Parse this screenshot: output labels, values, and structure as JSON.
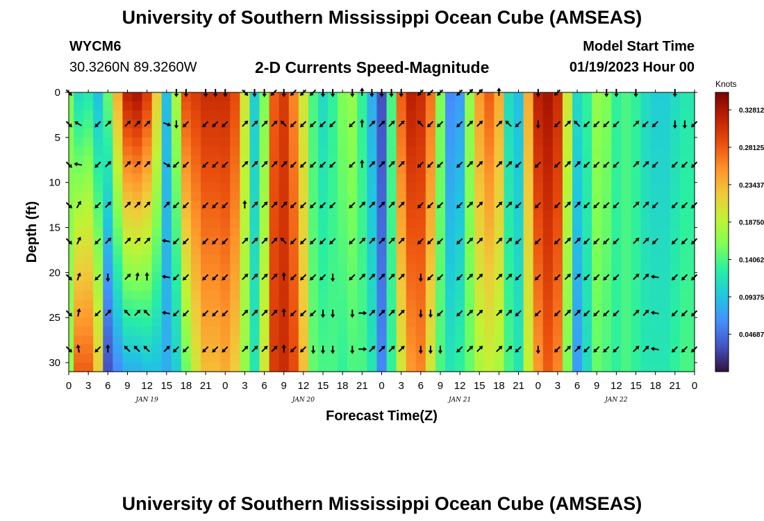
{
  "header": {
    "title": "University of Southern Mississippi Ocean Cube (AMSEAS)",
    "station_id": "WYCM6",
    "station_coords": "30.3260N  89.3260W",
    "subtitle": "2-D Currents Speed-Magnitude",
    "model_label": "Model Start Time",
    "model_time": "01/19/2023 Hour 00"
  },
  "footer": {
    "title": "University of Southern Mississippi Ocean Cube (AMSEAS)"
  },
  "chart_data": {
    "type": "heatmap",
    "title": "2-D Currents Speed-Magnitude",
    "xlabel": "Forecast Time(Z)",
    "ylabel": "Depth (ft)",
    "x_range_hours": [
      0,
      96
    ],
    "ylim": [
      31,
      0
    ],
    "x_tick_labels": [
      "0",
      "3",
      "6",
      "9",
      "12",
      "15",
      "18",
      "21",
      "0",
      "3",
      "6",
      "9",
      "12",
      "15",
      "18",
      "21",
      "0",
      "3",
      "6",
      "9",
      "12",
      "15",
      "18",
      "21",
      "0",
      "3",
      "6",
      "9",
      "12",
      "15",
      "18",
      "21",
      "0"
    ],
    "y_ticks": [
      0,
      5,
      10,
      15,
      20,
      25,
      30
    ],
    "day_labels": [
      {
        "text": "JAN 19",
        "hour": 12
      },
      {
        "text": "JAN 20",
        "hour": 36
      },
      {
        "text": "JAN 21",
        "hour": 60
      },
      {
        "text": "JAN 22",
        "hour": 84
      }
    ],
    "colorbar": {
      "unit": "Knots",
      "min": 0.0,
      "max": 0.35,
      "tick_labels": [
        "0.32812",
        "0.28125",
        "0.23437",
        "0.18750",
        "0.14062",
        "0.09375",
        "0.04687"
      ],
      "tick_values": [
        0.32812,
        0.28125,
        0.23437,
        0.1875,
        0.14062,
        0.09375,
        0.04687
      ],
      "colors": [
        "#30123b",
        "#4454c4",
        "#4490fe",
        "#1fc8de",
        "#29efa2",
        "#7dff56",
        "#c1f334",
        "#f1ca3a",
        "#fe922a",
        "#ea4f0d",
        "#be2102",
        "#7a0403"
      ]
    },
    "speed_profile": [
      {
        "hour": 0,
        "surface": 0.16,
        "deep": 0.17
      },
      {
        "hour": 1.5,
        "surface": 0.11,
        "deep": 0.28
      },
      {
        "hour": 3,
        "surface": 0.12,
        "deep": 0.28
      },
      {
        "hour": 4.5,
        "surface": 0.09,
        "deep": 0.22
      },
      {
        "hour": 6,
        "surface": 0.15,
        "deep": 0.03
      },
      {
        "hour": 7.5,
        "surface": 0.24,
        "deep": 0.06
      },
      {
        "hour": 9,
        "surface": 0.32,
        "deep": 0.08
      },
      {
        "hour": 10.5,
        "surface": 0.33,
        "deep": 0.08
      },
      {
        "hour": 12,
        "surface": 0.3,
        "deep": 0.09
      },
      {
        "hour": 13.5,
        "surface": 0.22,
        "deep": 0.09
      },
      {
        "hour": 15,
        "surface": 0.09,
        "deep": 0.08
      },
      {
        "hour": 16.5,
        "surface": 0.18,
        "deep": 0.1
      },
      {
        "hour": 18,
        "surface": 0.29,
        "deep": 0.15
      },
      {
        "hour": 19.5,
        "surface": 0.3,
        "deep": 0.2
      },
      {
        "hour": 21,
        "surface": 0.31,
        "deep": 0.23
      },
      {
        "hour": 22.5,
        "surface": 0.31,
        "deep": 0.23
      },
      {
        "hour": 24,
        "surface": 0.31,
        "deep": 0.24
      },
      {
        "hour": 25.5,
        "surface": 0.29,
        "deep": 0.22
      },
      {
        "hour": 27,
        "surface": 0.2,
        "deep": 0.17
      },
      {
        "hour": 28.5,
        "surface": 0.1,
        "deep": 0.12
      },
      {
        "hour": 30,
        "surface": 0.16,
        "deep": 0.2
      },
      {
        "hour": 31.5,
        "surface": 0.28,
        "deep": 0.3
      },
      {
        "hour": 33,
        "surface": 0.3,
        "deep": 0.31
      },
      {
        "hour": 34.5,
        "surface": 0.26,
        "deep": 0.29
      },
      {
        "hour": 36,
        "surface": 0.2,
        "deep": 0.23
      },
      {
        "hour": 37.5,
        "surface": 0.14,
        "deep": 0.15
      },
      {
        "hour": 39,
        "surface": 0.11,
        "deep": 0.14
      },
      {
        "hour": 40.5,
        "surface": 0.13,
        "deep": 0.14
      },
      {
        "hour": 42,
        "surface": 0.16,
        "deep": 0.13
      },
      {
        "hour": 43.5,
        "surface": 0.17,
        "deep": 0.14
      },
      {
        "hour": 45,
        "surface": 0.13,
        "deep": 0.14
      },
      {
        "hour": 46.5,
        "surface": 0.08,
        "deep": 0.12
      },
      {
        "hour": 48,
        "surface": 0.03,
        "deep": 0.06
      },
      {
        "hour": 49.5,
        "surface": 0.14,
        "deep": 0.13
      },
      {
        "hour": 51,
        "surface": 0.28,
        "deep": 0.2
      },
      {
        "hour": 52.5,
        "surface": 0.32,
        "deep": 0.25
      },
      {
        "hour": 54,
        "surface": 0.31,
        "deep": 0.26
      },
      {
        "hour": 55.5,
        "surface": 0.27,
        "deep": 0.2
      },
      {
        "hour": 57,
        "surface": 0.16,
        "deep": 0.14
      },
      {
        "hour": 58.5,
        "surface": 0.06,
        "deep": 0.12
      },
      {
        "hour": 60,
        "surface": 0.07,
        "deep": 0.13
      },
      {
        "hour": 61.5,
        "surface": 0.17,
        "deep": 0.15
      },
      {
        "hour": 63,
        "surface": 0.25,
        "deep": 0.18
      },
      {
        "hour": 64.5,
        "surface": 0.28,
        "deep": 0.19
      },
      {
        "hour": 66,
        "surface": 0.24,
        "deep": 0.18
      },
      {
        "hour": 67.5,
        "surface": 0.11,
        "deep": 0.14
      },
      {
        "hour": 69,
        "surface": 0.09,
        "deep": 0.12
      },
      {
        "hour": 70.5,
        "surface": 0.24,
        "deep": 0.19
      },
      {
        "hour": 72,
        "surface": 0.32,
        "deep": 0.25
      },
      {
        "hour": 73.5,
        "surface": 0.33,
        "deep": 0.28
      },
      {
        "hour": 75,
        "surface": 0.31,
        "deep": 0.26
      },
      {
        "hour": 76.5,
        "surface": 0.2,
        "deep": 0.16
      },
      {
        "hour": 78,
        "surface": 0.11,
        "deep": 0.07
      },
      {
        "hour": 79.5,
        "surface": 0.13,
        "deep": 0.11
      },
      {
        "hour": 81,
        "surface": 0.17,
        "deep": 0.15
      },
      {
        "hour": 82.5,
        "surface": 0.16,
        "deep": 0.14
      },
      {
        "hour": 84,
        "surface": 0.13,
        "deep": 0.13
      },
      {
        "hour": 85.5,
        "surface": 0.14,
        "deep": 0.14
      },
      {
        "hour": 87,
        "surface": 0.13,
        "deep": 0.13
      },
      {
        "hour": 88.5,
        "surface": 0.11,
        "deep": 0.12
      },
      {
        "hour": 90,
        "surface": 0.1,
        "deep": 0.12
      },
      {
        "hour": 91.5,
        "surface": 0.1,
        "deep": 0.12
      },
      {
        "hour": 93,
        "surface": 0.11,
        "deep": 0.13
      },
      {
        "hour": 94.5,
        "surface": 0.12,
        "deep": 0.14
      },
      {
        "hour": 96,
        "surface": 0.12,
        "deep": 0.14
      }
    ],
    "arrow_depths_ft": [
      0,
      3.5,
      8,
      12.5,
      16.5,
      20.5,
      24.5,
      28.5
    ],
    "arrow_columns": [
      {
        "hour": 0,
        "dirs_deg": [
          135,
          135,
          135,
          135,
          135,
          135,
          135,
          135
        ]
      },
      {
        "hour": 1.5,
        "dirs_deg": [
          null,
          300,
          280,
          30,
          25,
          20,
          10,
          350
        ]
      },
      {
        "hour": 4.5,
        "dirs_deg": [
          null,
          225,
          225,
          225,
          225,
          225,
          225,
          225
        ]
      },
      {
        "hour": 6,
        "dirs_deg": [
          null,
          45,
          45,
          45,
          45,
          180,
          45,
          0
        ]
      },
      {
        "hour": 9,
        "dirs_deg": [
          null,
          45,
          45,
          45,
          45,
          45,
          315,
          315
        ]
      },
      {
        "hour": 10.5,
        "dirs_deg": [
          null,
          45,
          45,
          45,
          45,
          10,
          45,
          315
        ]
      },
      {
        "hour": 12,
        "dirs_deg": [
          null,
          45,
          45,
          45,
          45,
          0,
          315,
          315
        ]
      },
      {
        "hour": 15,
        "dirs_deg": [
          null,
          110,
          120,
          45,
          280,
          280,
          280,
          45
        ]
      },
      {
        "hour": 16.5,
        "dirs_deg": [
          180,
          180,
          225,
          225,
          225,
          225,
          225,
          225
        ]
      },
      {
        "hour": 18,
        "dirs_deg": [
          180,
          225,
          225,
          225,
          225,
          225,
          225,
          225
        ]
      },
      {
        "hour": 21,
        "dirs_deg": [
          180,
          225,
          225,
          225,
          225,
          225,
          225,
          225
        ]
      },
      {
        "hour": 22.5,
        "dirs_deg": [
          180,
          225,
          225,
          225,
          225,
          225,
          225,
          225
        ]
      },
      {
        "hour": 24,
        "dirs_deg": [
          180,
          225,
          225,
          225,
          225,
          225,
          225,
          225
        ]
      },
      {
        "hour": 27,
        "dirs_deg": [
          135,
          45,
          45,
          0,
          45,
          45,
          45,
          45
        ]
      },
      {
        "hour": 28.5,
        "dirs_deg": [
          180,
          45,
          45,
          45,
          45,
          45,
          45,
          45
        ]
      },
      {
        "hour": 30,
        "dirs_deg": [
          180,
          45,
          45,
          45,
          45,
          45,
          45,
          45
        ]
      },
      {
        "hour": 31.5,
        "dirs_deg": [
          225,
          45,
          45,
          45,
          45,
          45,
          45,
          45
        ]
      },
      {
        "hour": 33,
        "dirs_deg": [
          180,
          315,
          45,
          45,
          315,
          0,
          0,
          0
        ]
      },
      {
        "hour": 34.5,
        "dirs_deg": [
          225,
          225,
          225,
          225,
          225,
          225,
          225,
          225
        ]
      },
      {
        "hour": 36,
        "dirs_deg": [
          225,
          225,
          225,
          225,
          225,
          225,
          225,
          225
        ]
      },
      {
        "hour": 37.5,
        "dirs_deg": [
          225,
          225,
          225,
          225,
          225,
          225,
          225,
          180
        ]
      },
      {
        "hour": 39,
        "dirs_deg": [
          180,
          225,
          225,
          225,
          225,
          225,
          180,
          180
        ]
      },
      {
        "hour": 40.5,
        "dirs_deg": [
          180,
          225,
          225,
          225,
          225,
          180,
          180,
          180
        ]
      },
      {
        "hour": 43.5,
        "dirs_deg": [
          180,
          225,
          225,
          225,
          225,
          225,
          180,
          180
        ]
      },
      {
        "hour": 45,
        "dirs_deg": [
          0,
          0,
          0,
          45,
          45,
          45,
          90,
          90
        ]
      },
      {
        "hour": 46.5,
        "dirs_deg": [
          180,
          45,
          45,
          45,
          45,
          45,
          45,
          45
        ]
      },
      {
        "hour": 48,
        "dirs_deg": [
          180,
          45,
          45,
          45,
          45,
          45,
          45,
          45
        ]
      },
      {
        "hour": 49.5,
        "dirs_deg": [
          180,
          45,
          45,
          45,
          45,
          45,
          45,
          45
        ]
      },
      {
        "hour": 51,
        "dirs_deg": [
          180,
          45,
          45,
          45,
          45,
          45,
          45,
          45
        ]
      },
      {
        "hour": 54,
        "dirs_deg": [
          225,
          315,
          225,
          225,
          225,
          180,
          180,
          180
        ]
      },
      {
        "hour": 55.5,
        "dirs_deg": [
          225,
          225,
          225,
          225,
          225,
          225,
          180,
          180
        ]
      },
      {
        "hour": 57,
        "dirs_deg": [
          225,
          225,
          225,
          225,
          225,
          225,
          225,
          180
        ]
      },
      {
        "hour": 60,
        "dirs_deg": [
          225,
          225,
          225,
          225,
          225,
          225,
          225,
          225
        ]
      },
      {
        "hour": 61.5,
        "dirs_deg": [
          45,
          45,
          45,
          45,
          45,
          45,
          45,
          45
        ]
      },
      {
        "hour": 63,
        "dirs_deg": [
          45,
          45,
          45,
          45,
          45,
          45,
          45,
          45
        ]
      },
      {
        "hour": 66,
        "dirs_deg": [
          0,
          45,
          45,
          45,
          45,
          45,
          45,
          45
        ]
      },
      {
        "hour": 67.5,
        "dirs_deg": [
          null,
          315,
          45,
          45,
          45,
          45,
          45,
          45
        ]
      },
      {
        "hour": 69,
        "dirs_deg": [
          null,
          225,
          225,
          225,
          225,
          225,
          225,
          225
        ]
      },
      {
        "hour": 72,
        "dirs_deg": [
          180,
          180,
          225,
          225,
          225,
          225,
          225,
          180
        ]
      },
      {
        "hour": 75,
        "dirs_deg": [
          225,
          225,
          225,
          225,
          225,
          225,
          225,
          225
        ]
      },
      {
        "hour": 76.5,
        "dirs_deg": [
          null,
          45,
          45,
          45,
          45,
          45,
          45,
          45
        ]
      },
      {
        "hour": 78,
        "dirs_deg": [
          null,
          315,
          45,
          45,
          45,
          45,
          45,
          45
        ]
      },
      {
        "hour": 79.5,
        "dirs_deg": [
          null,
          225,
          225,
          225,
          225,
          225,
          225,
          225
        ]
      },
      {
        "hour": 81,
        "dirs_deg": [
          null,
          225,
          225,
          225,
          225,
          225,
          225,
          225
        ]
      },
      {
        "hour": 82.5,
        "dirs_deg": [
          180,
          225,
          225,
          225,
          225,
          225,
          225,
          225
        ]
      },
      {
        "hour": 84,
        "dirs_deg": [
          180,
          225,
          225,
          225,
          225,
          225,
          225,
          225
        ]
      },
      {
        "hour": 87,
        "dirs_deg": [
          180,
          45,
          45,
          45,
          45,
          45,
          45,
          45
        ]
      },
      {
        "hour": 88.5,
        "dirs_deg": [
          null,
          225,
          45,
          45,
          45,
          45,
          45,
          45
        ]
      },
      {
        "hour": 90,
        "dirs_deg": [
          null,
          225,
          225,
          225,
          225,
          280,
          280,
          280
        ]
      },
      {
        "hour": 93,
        "dirs_deg": [
          180,
          180,
          225,
          225,
          225,
          225,
          225,
          225
        ]
      },
      {
        "hour": 94.5,
        "dirs_deg": [
          null,
          180,
          225,
          225,
          225,
          225,
          225,
          225
        ]
      },
      {
        "hour": 96,
        "dirs_deg": [
          null,
          225,
          225,
          225,
          225,
          225,
          225,
          225
        ]
      }
    ]
  }
}
